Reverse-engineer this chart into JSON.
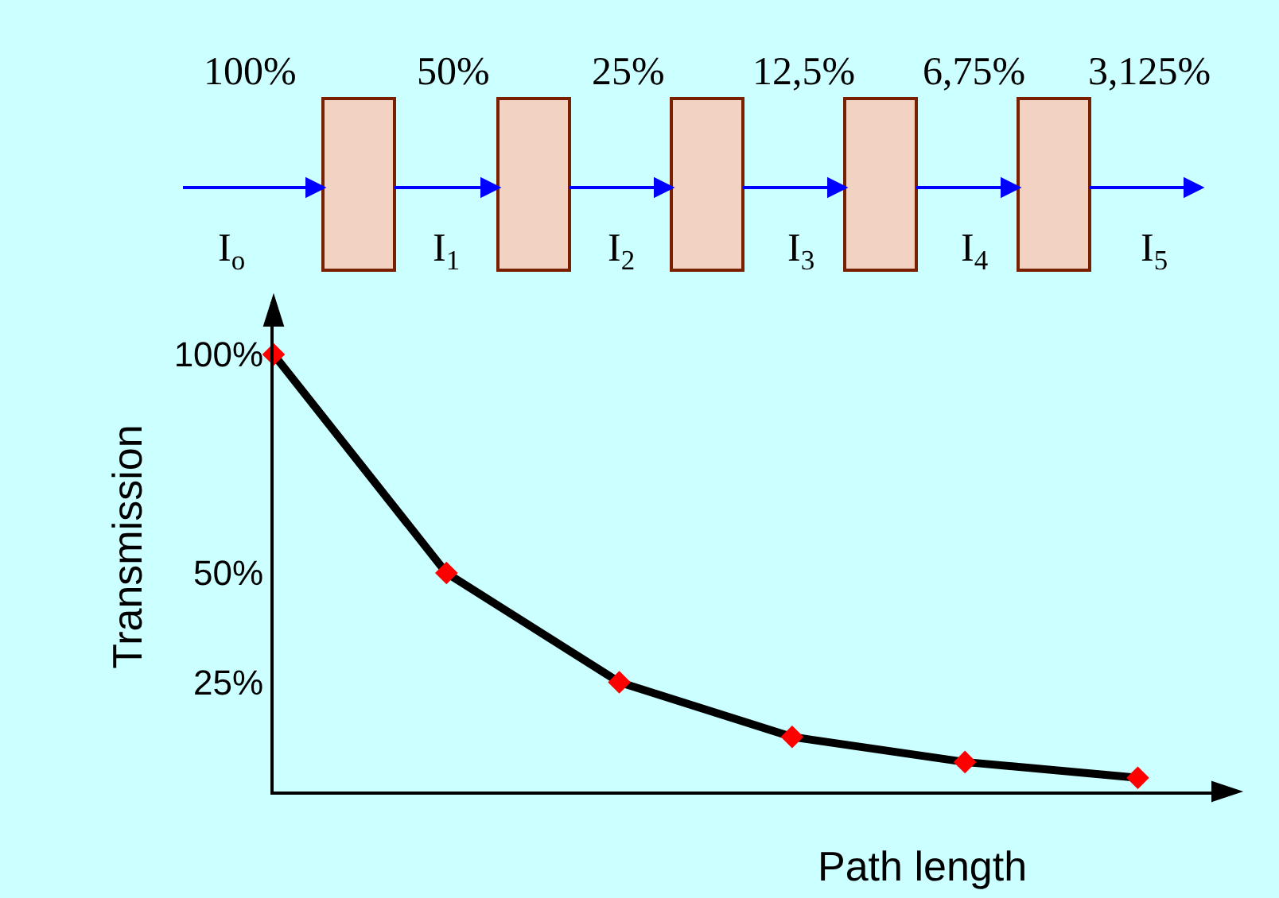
{
  "chart_data": {
    "type": "line",
    "xlabel": "Path length",
    "ylabel": "Transmission",
    "categories": [
      null,
      null,
      null,
      null,
      null,
      null
    ],
    "series": [
      {
        "color": "#000000",
        "values": [
          100,
          50,
          25,
          12.5,
          6.75,
          3.125
        ]
      }
    ],
    "ylim": [
      0,
      112
    ],
    "yticks": [
      {
        "value": 100,
        "label": "100%"
      },
      {
        "value": 50,
        "label": "50%"
      },
      {
        "value": 25,
        "label": "25%"
      }
    ],
    "marker": "diamond",
    "line_style": "solid",
    "grid": false,
    "legend": false,
    "tick_labels": "y",
    "annotations": [
      "100%",
      "50%",
      "25%",
      "12,5%",
      "6,75%",
      "3,125%",
      "I$_{o}$",
      "I$_{1}$",
      "I$_{2}$",
      "I$_{3}$",
      "I$_{4}$",
      "I$_{5}$"
    ]
  }
}
